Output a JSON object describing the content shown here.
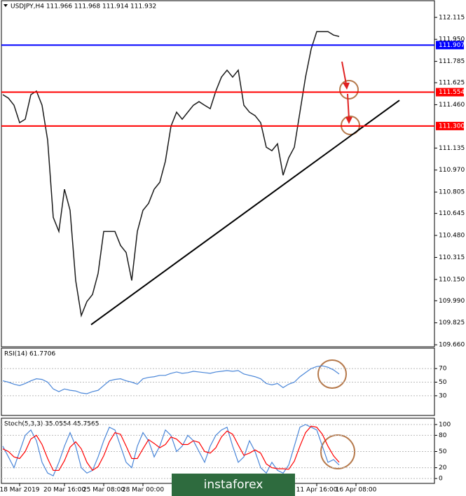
{
  "chart_data": [
    {
      "type": "line",
      "title": "USDJPY,H4  111.966 111.968 111.914 111.932",
      "categories": [
        null,
        null,
        null,
        "18 Mar 2019",
        null,
        null,
        null,
        null,
        null,
        null,
        null,
        "20 Mar 16:00",
        null,
        null,
        null,
        null,
        null,
        null,
        "25 Mar 08:00",
        null,
        null,
        null,
        null,
        null,
        null,
        "28 Mar 00:00",
        null,
        null,
        null,
        null,
        null,
        null,
        null,
        null,
        null,
        null,
        null,
        null,
        null,
        null,
        null,
        null,
        null,
        null,
        null,
        null,
        null,
        null,
        null,
        null,
        null,
        null,
        null,
        null,
        null,
        null,
        "11 Apr 16:00",
        null,
        null,
        null,
        null,
        null,
        null,
        "16 Apr 08:00",
        null,
        null,
        null,
        null,
        null,
        null,
        null,
        null,
        null,
        null,
        null,
        null,
        null
      ],
      "series": [
        {
          "color": "#1a1a1a",
          "values": [
            111.535,
            111.509,
            111.456,
            111.325,
            111.351,
            111.535,
            111.562,
            111.456,
            111.194,
            110.615,
            110.51,
            110.826,
            110.668,
            110.142,
            109.879,
            109.984,
            110.037,
            110.195,
            110.51,
            110.51,
            110.51,
            110.405,
            110.352,
            110.142,
            110.51,
            110.668,
            110.72,
            110.826,
            110.878,
            111.036,
            111.299,
            111.404,
            111.351,
            111.404,
            111.456,
            111.483,
            111.456,
            111.43,
            111.562,
            111.667,
            111.719,
            111.667,
            111.719,
            111.456,
            111.404,
            111.378,
            111.325,
            111.141,
            111.115,
            111.167,
            110.931,
            111.062,
            111.141,
            111.404,
            111.667,
            111.877,
            112.008,
            112.008,
            112.008,
            111.982,
            111.972,
            null,
            null,
            null,
            null,
            null,
            null,
            null,
            null,
            null,
            null,
            null,
            null,
            null,
            null,
            null,
            null
          ]
        }
      ],
      "ylim": [
        109.645,
        112.245
      ],
      "yticks": [
        112.115,
        {
          "value": 111.95,
          "label": "111.950"
        },
        111.785,
        111.625,
        {
          "value": 111.46,
          "label": "111.460"
        },
        111.135,
        {
          "value": 110.97,
          "label": "110.970"
        },
        110.805,
        110.645,
        {
          "value": 110.48,
          "label": "110.480"
        },
        110.315,
        {
          "value": 110.15,
          "label": "110.150"
        },
        {
          "value": 109.99,
          "label": "109.990"
        },
        109.825,
        {
          "value": 109.66,
          "label": "109.660"
        }
      ],
      "levels": [
        {
          "value": 111.907,
          "label": "111.907",
          "color": "#0000ff"
        },
        {
          "value": 111.554,
          "label": "111.554",
          "color": "#ff0000"
        },
        {
          "value": 111.3,
          "label": "111.300",
          "color": "#ff0000"
        }
      ],
      "trendline": {
        "x": [
          15.75,
          70.75
        ],
        "y": [
          109.811,
          111.493
        ],
        "color": "#000000"
      },
      "logo": "instaforex"
    },
    {
      "type": "line",
      "title": "RSI(14) 61.7706",
      "ylim": [
        0,
        100
      ],
      "yticks": [
        70,
        50,
        30
      ],
      "series": [
        {
          "color": "#4a86d8",
          "values": [
            52,
            50,
            47,
            45,
            48,
            52,
            55,
            54,
            50,
            40,
            36,
            40,
            38,
            37,
            34,
            33,
            36,
            38,
            45,
            52,
            54,
            55,
            52,
            50,
            47,
            55,
            57,
            58,
            60,
            60,
            63,
            65,
            63,
            64,
            66,
            65,
            64,
            63,
            65,
            66,
            67,
            66,
            67,
            62,
            60,
            58,
            55,
            48,
            46,
            48,
            42,
            47,
            50,
            58,
            64,
            70,
            73,
            74,
            72,
            68,
            62
          ]
        }
      ]
    },
    {
      "type": "line",
      "title": "Stoch(5,3,3) 35.0554 45.7565",
      "ylim": [
        0,
        100
      ],
      "yticks": [
        100,
        80,
        50,
        20,
        0
      ],
      "series": [
        {
          "color": "#4a86d8",
          "values": [
            60,
            40,
            20,
            50,
            80,
            90,
            70,
            30,
            10,
            5,
            30,
            60,
            85,
            60,
            20,
            10,
            15,
            40,
            70,
            95,
            90,
            60,
            30,
            20,
            60,
            85,
            70,
            40,
            60,
            90,
            80,
            50,
            60,
            80,
            70,
            50,
            30,
            60,
            80,
            90,
            95,
            60,
            30,
            40,
            70,
            50,
            20,
            10,
            30,
            15,
            10,
            25,
            60,
            95,
            100,
            95,
            90,
            60,
            30,
            35,
            25
          ]
        },
        {
          "color": "#ff0000",
          "values": [
            55,
            50,
            40,
            37,
            50,
            73,
            80,
            63,
            37,
            15,
            15,
            33,
            58,
            68,
            55,
            30,
            15,
            22,
            42,
            68,
            85,
            82,
            60,
            37,
            37,
            55,
            72,
            65,
            57,
            63,
            77,
            73,
            63,
            63,
            70,
            67,
            50,
            47,
            57,
            77,
            88,
            82,
            62,
            43,
            47,
            53,
            47,
            27,
            20,
            18,
            18,
            17,
            32,
            60,
            85,
            97,
            95,
            82,
            60,
            42,
            30
          ]
        }
      ]
    }
  ]
}
